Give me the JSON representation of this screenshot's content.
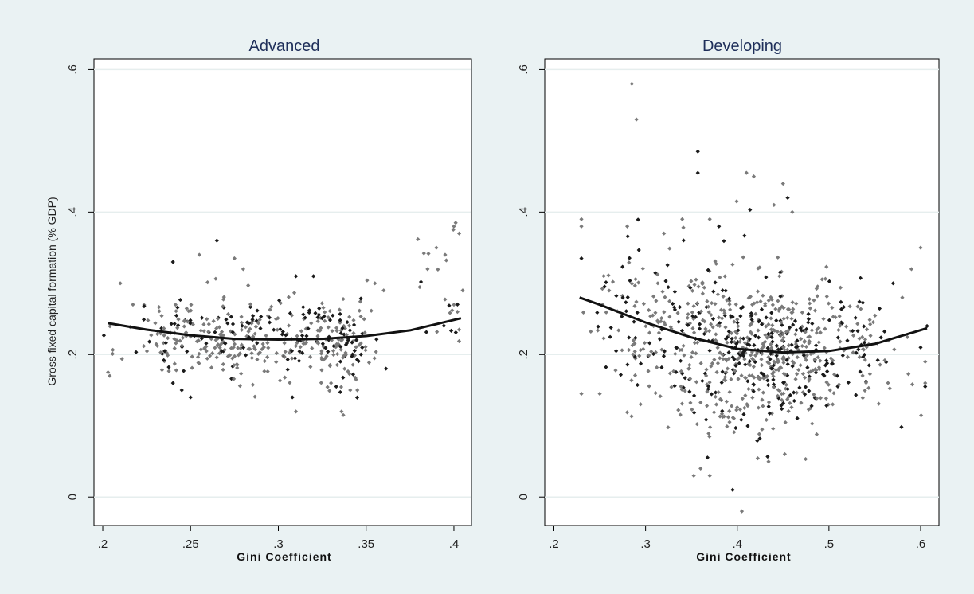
{
  "ylabel": "Gross fixed capital formation (% GDP)",
  "colors": {
    "background": "#eaf2f3",
    "plot_bg": "#ffffff",
    "title": "#1f2f5a",
    "gridline": "#e6eeee",
    "marker_gray": "#7a7a7a",
    "marker_dark": "#1a1a1a",
    "fit_line": "#111111"
  },
  "chart_data": [
    {
      "type": "scatter",
      "title": "Advanced",
      "xlabel": "Gini Coefficient",
      "ylabel": "Gross fixed capital formation (% GDP)",
      "xlim": [
        0.195,
        0.41
      ],
      "ylim": [
        -0.04,
        0.615
      ],
      "xticks": [
        0.2,
        0.25,
        0.3,
        0.35,
        0.4
      ],
      "xtick_labels": [
        ".2",
        ".25",
        ".3",
        ".35",
        ".4"
      ],
      "yticks": [
        0,
        0.2,
        0.4,
        0.6
      ],
      "ytick_labels": [
        "0",
        ".2",
        ".4",
        ".6"
      ],
      "grid": true,
      "fit_line": {
        "type": "quadratic",
        "x": [
          0.203,
          0.225,
          0.25,
          0.275,
          0.3,
          0.325,
          0.35,
          0.375,
          0.404
        ],
        "y": [
          0.244,
          0.235,
          0.227,
          0.222,
          0.221,
          0.222,
          0.226,
          0.234,
          0.251
        ]
      },
      "clusters": [
        {
          "cx": 0.255,
          "cy": 0.225,
          "sx": 0.022,
          "sy": 0.028,
          "n": 180
        },
        {
          "cx": 0.3,
          "cy": 0.225,
          "sx": 0.02,
          "sy": 0.028,
          "n": 150
        },
        {
          "cx": 0.335,
          "cy": 0.22,
          "sx": 0.012,
          "sy": 0.032,
          "n": 120
        },
        {
          "cx": 0.395,
          "cy": 0.3,
          "sx": 0.008,
          "sy": 0.05,
          "n": 25
        }
      ],
      "points": [
        [
          0.203,
          0.175
        ],
        [
          0.204,
          0.17
        ],
        [
          0.21,
          0.3
        ],
        [
          0.24,
          0.33
        ],
        [
          0.255,
          0.34
        ],
        [
          0.265,
          0.36
        ],
        [
          0.275,
          0.335
        ],
        [
          0.28,
          0.32
        ],
        [
          0.31,
          0.31
        ],
        [
          0.32,
          0.31
        ],
        [
          0.308,
          0.14
        ],
        [
          0.31,
          0.12
        ],
        [
          0.33,
          0.16
        ],
        [
          0.333,
          0.155
        ],
        [
          0.336,
          0.12
        ],
        [
          0.337,
          0.115
        ],
        [
          0.345,
          0.15
        ],
        [
          0.385,
          0.32
        ],
        [
          0.39,
          0.35
        ],
        [
          0.395,
          0.34
        ],
        [
          0.4,
          0.38
        ],
        [
          0.401,
          0.385
        ],
        [
          0.403,
          0.37
        ],
        [
          0.4,
          0.27
        ],
        [
          0.402,
          0.26
        ],
        [
          0.403,
          0.235
        ],
        [
          0.405,
          0.29
        ],
        [
          0.25,
          0.14
        ],
        [
          0.245,
          0.15
        ],
        [
          0.24,
          0.16
        ],
        [
          0.355,
          0.3
        ],
        [
          0.36,
          0.29
        ]
      ],
      "seed": 11
    },
    {
      "type": "scatter",
      "title": "Developing",
      "xlabel": "Gini Coefficient",
      "ylabel": "",
      "xlim": [
        0.19,
        0.62
      ],
      "ylim": [
        -0.04,
        0.615
      ],
      "xticks": [
        0.2,
        0.3,
        0.4,
        0.5,
        0.6
      ],
      "xtick_labels": [
        ".2",
        ".3",
        ".4",
        ".5",
        ".6"
      ],
      "yticks": [
        0,
        0.2,
        0.4,
        0.6
      ],
      "ytick_labels": [
        "0",
        ".2",
        ".4",
        ".6"
      ],
      "grid": true,
      "fit_line": {
        "type": "quadratic",
        "x": [
          0.228,
          0.25,
          0.3,
          0.35,
          0.4,
          0.45,
          0.5,
          0.55,
          0.607
        ],
        "y": [
          0.28,
          0.27,
          0.245,
          0.224,
          0.208,
          0.203,
          0.205,
          0.215,
          0.237
        ]
      },
      "clusters": [
        {
          "cx": 0.38,
          "cy": 0.21,
          "sx": 0.04,
          "sy": 0.06,
          "n": 320
        },
        {
          "cx": 0.45,
          "cy": 0.2,
          "sx": 0.035,
          "sy": 0.05,
          "n": 340
        },
        {
          "cx": 0.3,
          "cy": 0.25,
          "sx": 0.03,
          "sy": 0.05,
          "n": 120
        },
        {
          "cx": 0.53,
          "cy": 0.21,
          "sx": 0.025,
          "sy": 0.04,
          "n": 90
        }
      ],
      "points": [
        [
          0.285,
          0.58
        ],
        [
          0.29,
          0.53
        ],
        [
          0.357,
          0.485
        ],
        [
          0.357,
          0.455
        ],
        [
          0.41,
          0.455
        ],
        [
          0.418,
          0.45
        ],
        [
          0.45,
          0.44
        ],
        [
          0.455,
          0.42
        ],
        [
          0.46,
          0.4
        ],
        [
          0.44,
          0.41
        ],
        [
          0.37,
          0.39
        ],
        [
          0.38,
          0.38
        ],
        [
          0.395,
          0.01
        ],
        [
          0.405,
          -0.02
        ],
        [
          0.23,
          0.38
        ],
        [
          0.23,
          0.39
        ],
        [
          0.23,
          0.335
        ],
        [
          0.23,
          0.145
        ],
        [
          0.25,
          0.145
        ],
        [
          0.37,
          0.03
        ],
        [
          0.36,
          0.04
        ],
        [
          0.6,
          0.35
        ],
        [
          0.59,
          0.32
        ],
        [
          0.605,
          0.16
        ],
        [
          0.605,
          0.155
        ],
        [
          0.605,
          0.19
        ],
        [
          0.607,
          0.24
        ],
        [
          0.57,
          0.3
        ],
        [
          0.58,
          0.28
        ],
        [
          0.6,
          0.21
        ],
        [
          0.32,
          0.37
        ],
        [
          0.34,
          0.39
        ],
        [
          0.28,
          0.38
        ]
      ],
      "seed": 29
    }
  ]
}
